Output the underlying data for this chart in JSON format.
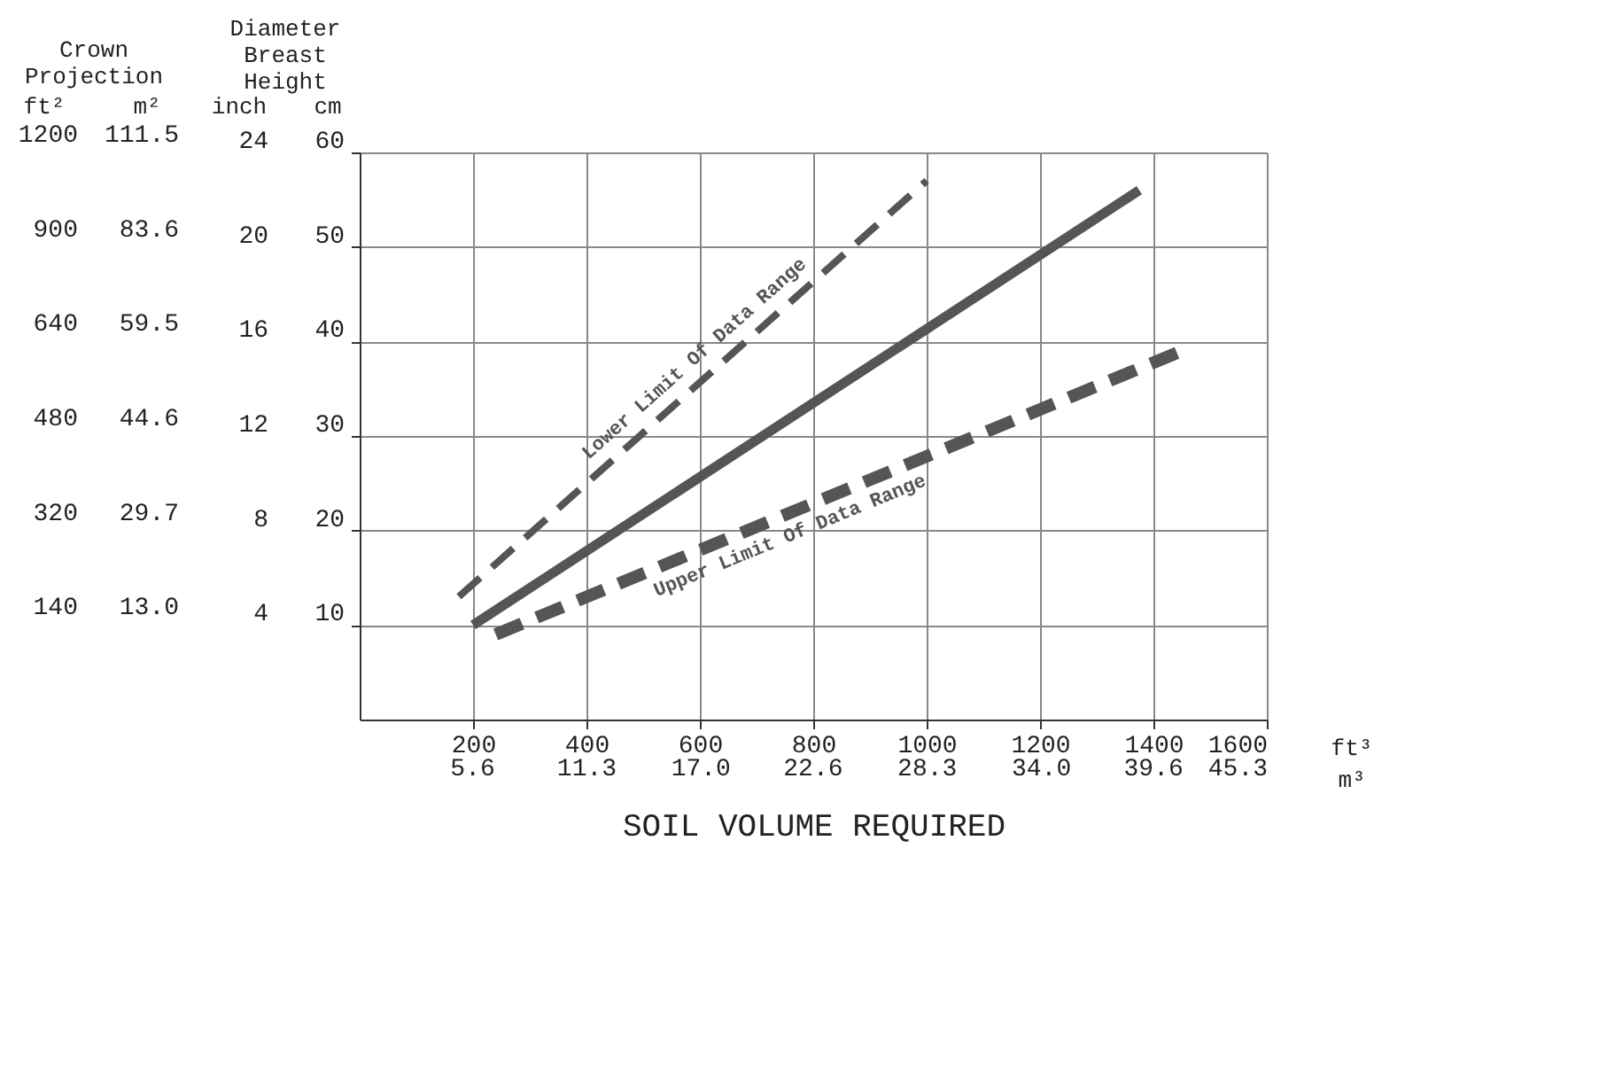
{
  "chart_data": {
    "type": "line",
    "xlabel": "SOIL VOLUME REQUIRED",
    "annotations": [
      "Crown Projection",
      "Diameter Breast Height",
      "ft²",
      "m²",
      "inch",
      "cm",
      "ft³",
      "m³",
      "140",
      "320",
      "480",
      "640",
      "900",
      "1200",
      "13.0",
      "29.7",
      "44.6",
      "59.5",
      "83.6",
      "111.5"
    ],
    "xlim": [
      0,
      1600
    ],
    "xticks": [
      200,
      400,
      600,
      800,
      1000,
      1200,
      1400,
      1600
    ],
    "x2lim": [
      0,
      45.3
    ],
    "x2ticks": [
      5.6,
      11.3,
      {
        "value": 17,
        "label": "17.0"
      },
      22.6,
      28.3,
      {
        "value": 34,
        "label": "34.0"
      },
      39.6,
      45.3
    ],
    "ylim": [
      0,
      60
    ],
    "yticks": [
      10,
      20,
      30,
      40,
      50,
      60
    ],
    "y2lim": [
      0,
      24
    ],
    "y2ticks": [
      4,
      8,
      12,
      16,
      20,
      24
    ],
    "grid": true,
    "marker": "none",
    "series": [
      {
        "name": "Lower Limit Of Data Range",
        "color": "#555555",
        "line_style": "dashed",
        "x": [
          175,
          1000
        ],
        "values": [
          13,
          57
        ]
      },
      {
        "color": "#555555",
        "line_style": "solid",
        "x": [
          200,
          1375
        ],
        "values": [
          10,
          56
        ]
      },
      {
        "name": "Upper Limit Of Data Range",
        "color": "#555555",
        "line_style": "dashed",
        "x": [
          240,
          1450
        ],
        "values": [
          9,
          39
        ]
      }
    ]
  }
}
